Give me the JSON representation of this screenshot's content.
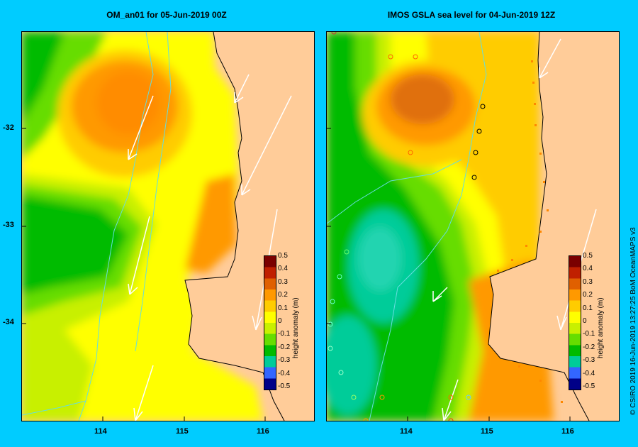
{
  "panels": [
    {
      "title": "OM_an01  for 05-Jun-2019 00Z"
    },
    {
      "title": "IMOS GSLA sea level  for 04-Jun-2019 12Z"
    }
  ],
  "axes": {
    "lat_labels": [
      "-32",
      "-33",
      "-34"
    ],
    "lon_labels": [
      "114",
      "115",
      "116"
    ]
  },
  "colorbar": {
    "label": "height anomaly (m)",
    "ticks": [
      "0.5",
      "0.4",
      "0.3",
      "0.2",
      "0.1",
      "0",
      "-0.1",
      "-0.2",
      "-0.3",
      "-0.4",
      "-0.5"
    ],
    "colors": [
      "#7a0000",
      "#c02000",
      "#e06000",
      "#ff9900",
      "#ffcc00",
      "#ffff00",
      "#c8f000",
      "#66dd00",
      "#00bb00",
      "#00cc99",
      "#3366ff",
      "#000088"
    ]
  },
  "credit": "© CSIRO 2019   16-Jun-2019 13:27:25 BoM OceanMAPS v3",
  "colors": {
    "land": "#ffcc99",
    "frame_bg": "#00ccff",
    "river": "#66dddd",
    "coast": "#000000"
  }
}
